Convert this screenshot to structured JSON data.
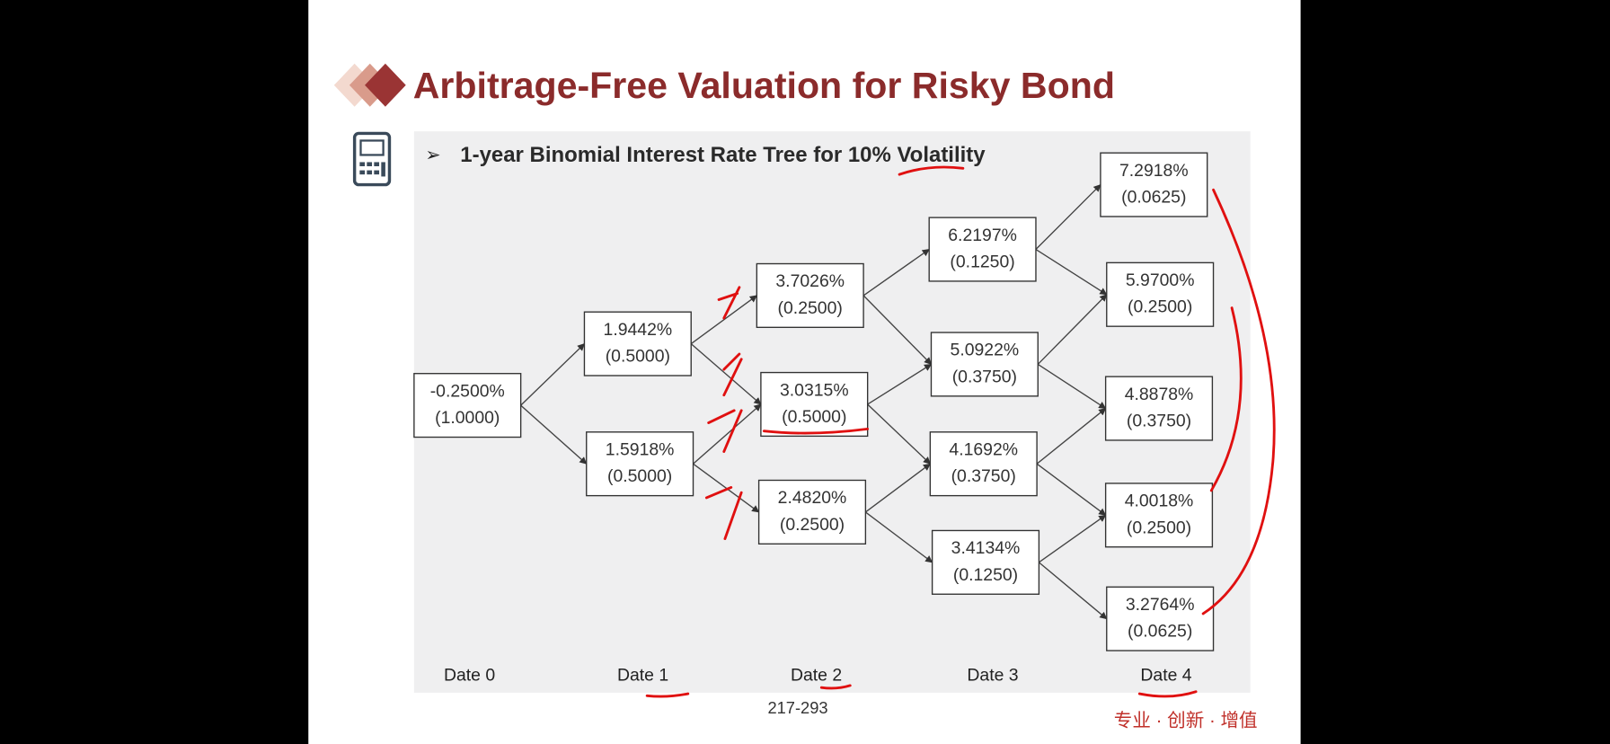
{
  "title": "Arbitrage-Free Valuation for Risky Bond",
  "subtitle": "1-year Binomial Interest Rate Tree for 10% Volatility",
  "dates": [
    "Date 0",
    "Date 1",
    "Date 2",
    "Date 3",
    "Date 4"
  ],
  "nodes": [
    [
      {
        "rate": "-0.2500%",
        "prob": "(1.0000)"
      }
    ],
    [
      {
        "rate": "1.9442%",
        "prob": "(0.5000)"
      },
      {
        "rate": "1.5918%",
        "prob": "(0.5000)"
      }
    ],
    [
      {
        "rate": "3.7026%",
        "prob": "(0.2500)"
      },
      {
        "rate": "3.0315%",
        "prob": "(0.5000)"
      },
      {
        "rate": "2.4820%",
        "prob": "(0.2500)"
      }
    ],
    [
      {
        "rate": "6.2197%",
        "prob": "(0.1250)"
      },
      {
        "rate": "5.0922%",
        "prob": "(0.3750)"
      },
      {
        "rate": "4.1692%",
        "prob": "(0.3750)"
      },
      {
        "rate": "3.4134%",
        "prob": "(0.1250)"
      }
    ],
    [
      {
        "rate": "7.2918%",
        "prob": "(0.0625)"
      },
      {
        "rate": "5.9700%",
        "prob": "(0.2500)"
      },
      {
        "rate": "4.8878%",
        "prob": "(0.3750)"
      },
      {
        "rate": "4.0018%",
        "prob": "(0.2500)"
      },
      {
        "rate": "3.2764%",
        "prob": "(0.0625)"
      }
    ]
  ],
  "page_number": "217-293",
  "footer": "专业 · 创新 · 增值"
}
